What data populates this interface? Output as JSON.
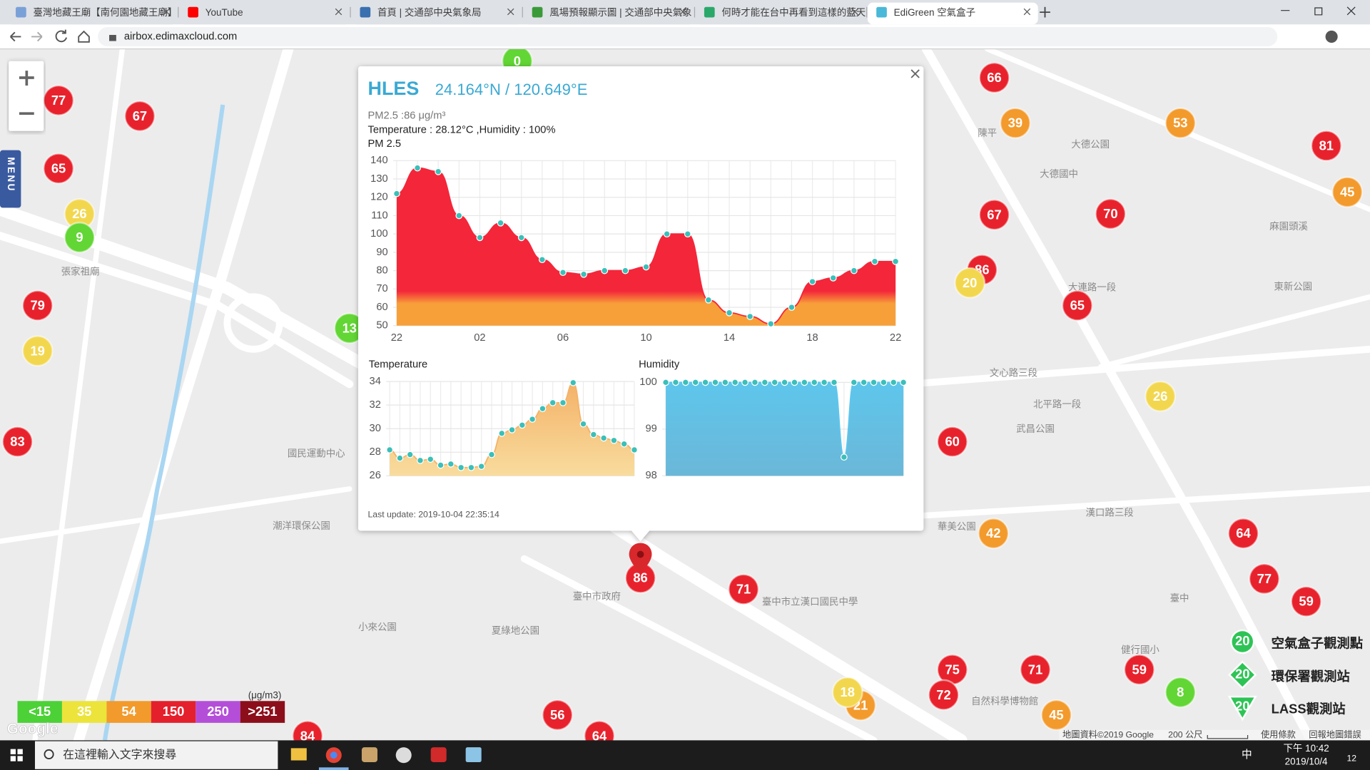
{
  "browser": {
    "tabs": [
      "臺灣地藏王廟【南何園地藏王廟】",
      "YouTube",
      "首頁 | 交通部中央氣象局",
      "風場預報顯示圖 | 交通部中央氣象",
      "何時才能在台中再看到這樣的藍天",
      "EdiGreen 空氣盒子"
    ],
    "active_tab": 5,
    "url": "airbox.edimaxcloud.com"
  },
  "map": {
    "markers": [
      {
        "value": 0,
        "color": "#62d634"
      },
      {
        "value": 77,
        "color": "#e8222c"
      },
      {
        "value": 67,
        "color": "#e8222c"
      },
      {
        "value": 65,
        "color": "#e8222c"
      },
      {
        "value": 26,
        "color": "#f2d74e"
      },
      {
        "value": 9,
        "color": "#62d634"
      },
      {
        "value": 79,
        "color": "#e8222c"
      },
      {
        "value": 19,
        "color": "#f2d74e"
      },
      {
        "value": 83,
        "color": "#e8222c"
      },
      {
        "value": 13,
        "color": "#62d634"
      },
      {
        "value": 66,
        "color": "#e8222c"
      },
      {
        "value": 39,
        "color": "#f39a2c"
      },
      {
        "value": 53,
        "color": "#f39a2c"
      },
      {
        "value": 81,
        "color": "#e8222c"
      },
      {
        "value": 45,
        "color": "#f39a2c"
      },
      {
        "value": 67,
        "color": "#e8222c"
      },
      {
        "value": 70,
        "color": "#e8222c"
      },
      {
        "value": 86,
        "color": "#e8222c"
      },
      {
        "value": 20,
        "color": "#f2d74e"
      },
      {
        "value": 65,
        "color": "#e8222c"
      },
      {
        "value": 26,
        "color": "#f2d74e"
      },
      {
        "value": 60,
        "color": "#e8222c"
      },
      {
        "value": 42,
        "color": "#f39a2c"
      },
      {
        "value": 64,
        "color": "#e8222c"
      },
      {
        "value": 77,
        "color": "#e8222c"
      },
      {
        "value": 59,
        "color": "#e8222c"
      },
      {
        "value": 71,
        "color": "#e8222c"
      },
      {
        "value": 86,
        "color": "#e8222c"
      },
      {
        "value": 75,
        "color": "#e8222c"
      },
      {
        "value": 71,
        "color": "#e8222c"
      },
      {
        "value": 59,
        "color": "#e8222c"
      },
      {
        "value": 72,
        "color": "#e8222c"
      },
      {
        "value": 21,
        "color": "#f39a2c"
      },
      {
        "value": 18,
        "color": "#f2d74e"
      },
      {
        "value": 45,
        "color": "#f39a2c"
      },
      {
        "value": 8,
        "color": "#62d634"
      },
      {
        "value": 56,
        "color": "#e8222c"
      },
      {
        "value": 64,
        "color": "#e8222c"
      },
      {
        "value": 84,
        "color": "#e8222c"
      }
    ],
    "labels": [
      "張家祖廟",
      "臺中市政府",
      "夏綠地公園",
      "小來公園",
      "潮洋環保公園",
      "國民運動中心",
      "臺中市立漢口國民中學",
      "武昌公園",
      "北平路一段",
      "大連路一段",
      "文心路三段",
      "漢口路三段",
      "東新公園",
      "大德公園",
      "陳平",
      "大德國中",
      "自然科學博物館",
      "臺中",
      "麻園頭溪",
      "華美公園",
      "健行國小"
    ],
    "legend": {
      "unit": "(μg/m3)",
      "levels": [
        {
          "label": "<15",
          "color": "#4cd137"
        },
        {
          "label": "35",
          "color": "#ece43a"
        },
        {
          "label": "54",
          "color": "#f29a2b"
        },
        {
          "label": "150",
          "color": "#e4202c"
        },
        {
          "label": "250",
          "color": "#b44ed8"
        },
        {
          "label": ">251",
          "color": "#8c0e1a"
        }
      ]
    },
    "stations": [
      {
        "label": "空氣盒子觀測點",
        "value": 20
      },
      {
        "label": "環保署觀測站",
        "value": 20
      },
      {
        "label": "LASS觀測站",
        "value": 20
      }
    ],
    "attribution": "地圖資料©2019 Google",
    "scale": "200 公尺",
    "terms": "使用條款",
    "report": "回報地圖錯誤",
    "logo": "Google",
    "menu": "MENU"
  },
  "popup": {
    "title": "HLES",
    "coords": "24.164°N / 120.649°E",
    "pm_text": "PM2.5 :86 μg/m³",
    "env_text": "Temperature : 28.12°C ,Humidity : 100%",
    "pm_chart": {
      "type": "line",
      "title": "PM 2.5",
      "categories": [
        "22",
        null,
        null,
        null,
        "02",
        null,
        null,
        null,
        "06",
        null,
        null,
        null,
        "10",
        null,
        null,
        null,
        "14",
        null,
        null,
        null,
        "18",
        null,
        null,
        null,
        "22"
      ],
      "values": [
        122,
        136,
        134,
        110,
        98,
        106,
        98,
        86,
        79,
        78,
        80,
        80,
        82,
        100,
        100,
        64,
        57,
        55,
        51,
        60,
        74,
        76,
        80,
        85,
        85
      ],
      "ylim": [
        50,
        140
      ],
      "yticks": [
        50,
        60,
        70,
        80,
        90,
        100,
        110,
        120,
        130,
        140
      ],
      "grid": true,
      "fill": [
        "#f4263a",
        "#f7a03a"
      ],
      "point_color": "#3bbfb9"
    },
    "temperature_chart": {
      "type": "line",
      "title": "Temperature",
      "categories": [
        null,
        null,
        null,
        null,
        null,
        null,
        null,
        null,
        null,
        null,
        null,
        null,
        null,
        null,
        null,
        null,
        null,
        null,
        null,
        null,
        null,
        null,
        null,
        null,
        null
      ],
      "values": [
        28.2,
        27.5,
        27.8,
        27.3,
        27.4,
        26.9,
        27.0,
        26.7,
        26.7,
        26.8,
        27.8,
        29.6,
        29.9,
        30.3,
        30.8,
        31.7,
        32.2,
        32.2,
        33.9,
        30.4,
        29.5,
        29.2,
        29.0,
        28.7,
        28.2
      ],
      "ylim": [
        26,
        34
      ],
      "yticks": [
        26,
        28,
        30,
        32,
        34
      ],
      "grid": true,
      "fill": [
        "#f4b268",
        "#f8dc9e"
      ],
      "point_color": "#3bbfb9"
    },
    "humidity_chart": {
      "type": "line",
      "title": "Humidity",
      "categories": [
        null,
        null,
        null,
        null,
        null,
        null,
        null,
        null,
        null,
        null,
        null,
        null,
        null,
        null,
        null,
        null,
        null,
        null,
        null,
        null,
        null,
        null,
        null,
        null,
        null
      ],
      "values": [
        100,
        100,
        100,
        100,
        100,
        100,
        100,
        100,
        100,
        100,
        100,
        100,
        100,
        100,
        100,
        100,
        100,
        100,
        98.4,
        100,
        100,
        100,
        100,
        100,
        100
      ],
      "ylim": [
        98,
        100
      ],
      "yticks": [
        98,
        99,
        100
      ],
      "grid": true,
      "fill": [
        "#5ec6ec",
        "#6bb7d8"
      ],
      "point_color": "#3bbfb9"
    },
    "last_update": "Last update: 2019-10-04 22:35:14"
  },
  "taskbar": {
    "search": "在這裡輸入文字來搜尋",
    "time": "下午 10:42",
    "date": "2019/10/4",
    "ime": "中",
    "notifications": "12"
  }
}
